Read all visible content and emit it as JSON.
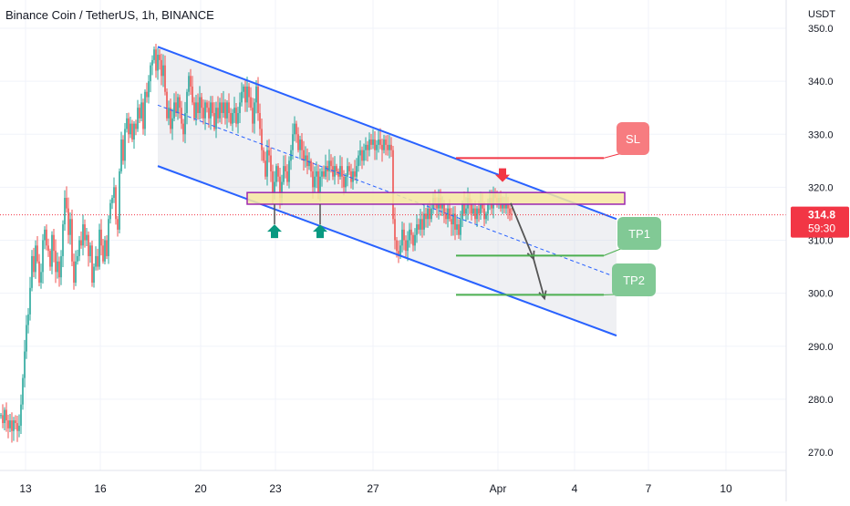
{
  "header": {
    "symbol": "Binance Coin / TetherUS",
    "interval": "1h",
    "exchange": "BINANCE"
  },
  "chart_data": {
    "type": "candlestick",
    "currency": "USDT",
    "ylim": [
      265,
      350
    ],
    "y_ticks": [
      "350.0",
      "340.0",
      "330.0",
      "320.0",
      "310.0",
      "300.0",
      "290.0",
      "280.0",
      "270.0"
    ],
    "x_ticks": [
      "13",
      "16",
      "20",
      "23",
      "27",
      "Apr",
      "4",
      "7",
      "10"
    ],
    "last_price": "314.8",
    "countdown": "59:30",
    "colors": {
      "up": "#26a69a",
      "down": "#ef5350",
      "channel": "#2962ff",
      "zone_fill": "#f7e7a1",
      "zone_border": "#9c27b0",
      "sl": "#f23645",
      "tp": "#4caf50"
    },
    "price_path": [
      [
        0,
        277
      ],
      [
        2,
        275.5
      ],
      [
        4,
        278
      ],
      [
        6,
        276
      ],
      [
        8,
        274.5
      ],
      [
        10,
        276
      ],
      [
        12,
        274
      ],
      [
        14,
        276
      ],
      [
        16,
        275.5
      ],
      [
        18,
        274
      ],
      [
        20,
        275
      ],
      [
        22,
        279
      ],
      [
        24,
        284
      ],
      [
        26,
        289
      ],
      [
        28,
        294
      ],
      [
        30,
        296
      ],
      [
        32,
        301
      ],
      [
        34,
        307
      ],
      [
        36,
        304
      ],
      [
        38,
        309
      ],
      [
        40,
        306
      ],
      [
        42,
        302
      ],
      [
        44,
        304
      ],
      [
        46,
        310
      ],
      [
        48,
        312
      ],
      [
        50,
        309
      ],
      [
        52,
        308
      ],
      [
        54,
        305
      ],
      [
        56,
        311
      ],
      [
        58,
        308
      ],
      [
        60,
        304
      ],
      [
        62,
        306
      ],
      [
        64,
        303
      ],
      [
        66,
        307
      ],
      [
        68,
        313
      ],
      [
        70,
        318
      ],
      [
        72,
        316
      ],
      [
        74,
        311
      ],
      [
        76,
        314
      ],
      [
        78,
        306
      ],
      [
        80,
        302
      ],
      [
        82,
        306
      ],
      [
        84,
        307
      ],
      [
        86,
        310
      ],
      [
        88,
        309
      ],
      [
        90,
        313
      ],
      [
        92,
        310
      ],
      [
        94,
        311
      ],
      [
        96,
        307
      ],
      [
        98,
        309
      ],
      [
        100,
        302
      ],
      [
        102,
        305
      ],
      [
        104,
        307
      ],
      [
        106,
        305
      ],
      [
        108,
        312
      ],
      [
        110,
        309
      ],
      [
        112,
        306
      ],
      [
        114,
        310
      ],
      [
        116,
        307
      ],
      [
        118,
        314
      ],
      [
        120,
        317
      ],
      [
        122,
        318
      ],
      [
        124,
        320
      ],
      [
        126,
        314
      ],
      [
        128,
        312
      ],
      [
        130,
        323
      ],
      [
        132,
        329
      ],
      [
        134,
        325
      ],
      [
        136,
        331
      ],
      [
        138,
        333
      ],
      [
        140,
        330
      ],
      [
        142,
        332
      ],
      [
        144,
        329
      ],
      [
        146,
        332
      ],
      [
        148,
        331
      ],
      [
        150,
        335
      ],
      [
        152,
        333
      ],
      [
        154,
        336
      ],
      [
        156,
        331
      ],
      [
        158,
        338
      ],
      [
        160,
        337
      ],
      [
        162,
        340
      ],
      [
        164,
        343
      ],
      [
        166,
        344
      ],
      [
        168,
        346
      ],
      [
        170,
        342
      ],
      [
        172,
        345
      ],
      [
        174,
        344
      ],
      [
        176,
        341
      ],
      [
        178,
        343
      ],
      [
        180,
        338
      ],
      [
        182,
        333
      ],
      [
        184,
        335
      ],
      [
        186,
        331
      ],
      [
        188,
        333
      ],
      [
        190,
        336
      ],
      [
        192,
        334
      ],
      [
        194,
        337
      ],
      [
        196,
        335
      ],
      [
        198,
        332
      ],
      [
        200,
        330
      ],
      [
        202,
        334
      ],
      [
        204,
        338
      ],
      [
        206,
        341
      ],
      [
        208,
        339
      ],
      [
        210,
        336
      ],
      [
        212,
        333
      ],
      [
        214,
        336
      ],
      [
        216,
        334
      ],
      [
        218,
        337
      ],
      [
        220,
        335
      ],
      [
        222,
        333
      ],
      [
        224,
        336
      ],
      [
        226,
        335
      ],
      [
        228,
        333
      ],
      [
        230,
        336
      ],
      [
        232,
        334
      ],
      [
        234,
        331
      ],
      [
        236,
        335
      ],
      [
        238,
        333
      ],
      [
        240,
        336
      ],
      [
        242,
        334
      ],
      [
        244,
        336
      ],
      [
        246,
        333
      ],
      [
        248,
        336
      ],
      [
        250,
        334
      ],
      [
        252,
        332
      ],
      [
        254,
        334
      ],
      [
        256,
        335
      ],
      [
        258,
        332
      ],
      [
        260,
        334
      ],
      [
        262,
        336
      ],
      [
        264,
        338
      ],
      [
        266,
        339
      ],
      [
        268,
        336
      ],
      [
        270,
        339
      ],
      [
        272,
        337
      ],
      [
        274,
        335
      ],
      [
        276,
        332
      ],
      [
        278,
        336
      ],
      [
        280,
        339
      ],
      [
        282,
        334
      ],
      [
        284,
        331
      ],
      [
        286,
        327
      ],
      [
        288,
        325
      ],
      [
        290,
        322
      ],
      [
        292,
        327
      ],
      [
        294,
        326
      ],
      [
        296,
        323
      ],
      [
        298,
        319
      ],
      [
        300,
        321
      ],
      [
        302,
        324
      ],
      [
        304,
        322
      ],
      [
        306,
        318
      ],
      [
        308,
        321
      ],
      [
        310,
        324
      ],
      [
        312,
        323
      ],
      [
        314,
        321
      ],
      [
        316,
        325
      ],
      [
        318,
        327
      ],
      [
        320,
        330
      ],
      [
        322,
        332
      ],
      [
        324,
        330
      ],
      [
        326,
        327
      ],
      [
        328,
        329
      ],
      [
        330,
        327
      ],
      [
        332,
        325
      ],
      [
        334,
        326
      ],
      [
        336,
        324
      ],
      [
        338,
        325
      ],
      [
        340,
        323
      ],
      [
        342,
        320
      ],
      [
        344,
        322
      ],
      [
        346,
        323
      ],
      [
        348,
        319
      ],
      [
        350,
        322
      ],
      [
        352,
        323
      ],
      [
        354,
        322
      ],
      [
        356,
        324
      ],
      [
        358,
        323
      ],
      [
        360,
        325
      ],
      [
        362,
        324
      ],
      [
        364,
        322
      ],
      [
        366,
        324
      ],
      [
        368,
        323
      ],
      [
        370,
        322
      ],
      [
        372,
        324
      ],
      [
        374,
        322
      ],
      [
        376,
        320
      ],
      [
        378,
        322
      ],
      [
        380,
        324
      ],
      [
        382,
        323
      ],
      [
        384,
        321
      ],
      [
        386,
        323
      ],
      [
        388,
        322
      ],
      [
        390,
        324
      ],
      [
        392,
        326
      ],
      [
        394,
        327
      ],
      [
        396,
        325
      ],
      [
        398,
        327
      ],
      [
        400,
        328
      ],
      [
        402,
        327
      ],
      [
        404,
        329
      ],
      [
        406,
        328
      ],
      [
        408,
        329
      ],
      [
        410,
        327
      ],
      [
        412,
        328
      ],
      [
        414,
        329
      ],
      [
        416,
        328
      ],
      [
        418,
        327
      ],
      [
        420,
        329
      ],
      [
        422,
        328
      ],
      [
        424,
        327
      ],
      [
        426,
        328
      ],
      [
        428,
        327
      ],
      [
        430,
        314
      ],
      [
        432,
        310
      ],
      [
        434,
        308
      ],
      [
        436,
        307
      ],
      [
        438,
        309
      ],
      [
        440,
        312
      ],
      [
        442,
        310
      ],
      [
        444,
        308
      ],
      [
        446,
        310
      ],
      [
        448,
        312
      ],
      [
        450,
        311
      ],
      [
        452,
        309
      ],
      [
        454,
        311
      ],
      [
        456,
        313
      ],
      [
        458,
        312
      ],
      [
        460,
        314
      ],
      [
        462,
        312
      ],
      [
        464,
        315
      ],
      [
        466,
        314
      ],
      [
        468,
        316
      ],
      [
        470,
        314
      ],
      [
        472,
        316
      ],
      [
        474,
        318
      ],
      [
        476,
        317
      ],
      [
        478,
        316
      ],
      [
        480,
        318
      ],
      [
        482,
        316
      ],
      [
        484,
        317
      ],
      [
        486,
        315
      ],
      [
        488,
        314
      ],
      [
        490,
        316
      ],
      [
        492,
        314
      ],
      [
        494,
        313
      ],
      [
        496,
        315
      ],
      [
        498,
        312
      ],
      [
        500,
        313
      ],
      [
        502,
        311
      ],
      [
        504,
        314
      ],
      [
        506,
        317
      ],
      [
        508,
        315
      ],
      [
        510,
        316
      ],
      [
        512,
        318
      ],
      [
        514,
        317
      ],
      [
        516,
        315
      ],
      [
        518,
        316
      ],
      [
        520,
        314
      ],
      [
        522,
        316
      ],
      [
        524,
        315
      ],
      [
        526,
        317
      ],
      [
        528,
        316
      ],
      [
        530,
        314
      ],
      [
        532,
        315
      ],
      [
        534,
        317
      ],
      [
        536,
        318
      ],
      [
        538,
        316
      ],
      [
        540,
        319
      ],
      [
        542,
        318
      ],
      [
        544,
        317
      ],
      [
        546,
        318
      ],
      [
        548,
        316
      ],
      [
        550,
        317
      ],
      [
        552,
        316
      ],
      [
        554,
        317
      ],
      [
        556,
        316
      ],
      [
        558,
        315
      ],
      [
        560,
        314.8
      ]
    ],
    "channel": {
      "upper": [
        [
          173,
          346.5
        ],
        [
          676,
          314
        ]
      ],
      "lower": [
        [
          173,
          324
        ],
        [
          676,
          292
        ]
      ],
      "mid": [
        [
          173,
          335.5
        ],
        [
          676,
          303
        ]
      ]
    },
    "zone": {
      "x_from": 271,
      "x_to": 685,
      "y_high": 319,
      "y_low": 316.8
    },
    "up_arrows": [
      {
        "x": 301,
        "y": 313
      },
      {
        "x": 351,
        "y": 313
      }
    ],
    "down_arrow": {
      "x": 551,
      "y": 321
    },
    "projection": [
      [
        560,
        317
      ],
      [
        585,
        306.5
      ],
      [
        597,
        299
      ]
    ],
    "sl": {
      "label": "SL",
      "price": 325.5,
      "x_from": 500,
      "x_to": 662
    },
    "tp1": {
      "label": "TP1",
      "price": 307.1,
      "x_from": 500,
      "x_to": 662
    },
    "tp2": {
      "label": "TP2",
      "price": 299.7,
      "x_from": 500,
      "x_to": 662
    }
  }
}
